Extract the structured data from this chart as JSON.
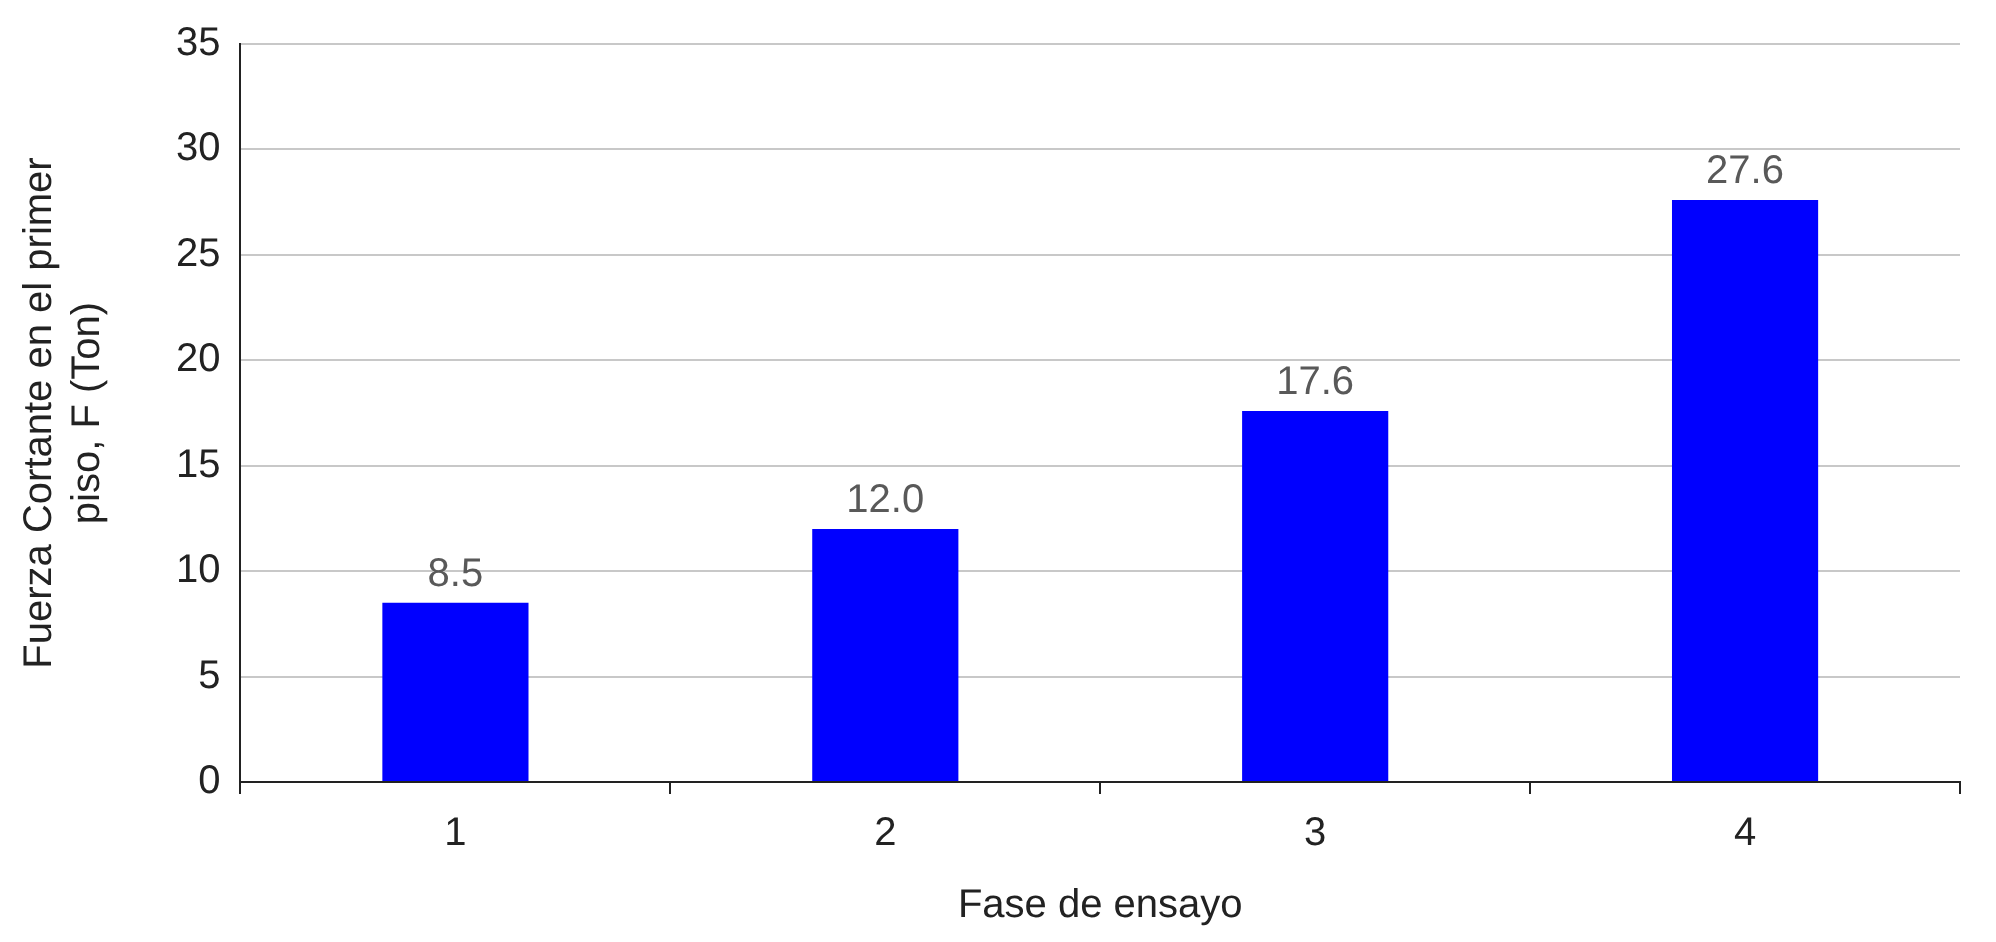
{
  "chart_data": {
    "type": "bar",
    "xlabel": "Fase de ensayo",
    "ylabel": "Fuerza Cortante en el primer piso, F (Ton)",
    "categories": [
      "1",
      "2",
      "3",
      "4"
    ],
    "values": [
      8.5,
      12.0,
      17.6,
      27.6
    ],
    "value_labels": [
      "8.5",
      "12.0",
      "17.6",
      "27.6"
    ],
    "color": "#0000ff",
    "ylim": [
      0,
      35
    ],
    "yticks": [
      0,
      5,
      10,
      15,
      20,
      25,
      30,
      35
    ],
    "grid": "y",
    "legend": false
  }
}
